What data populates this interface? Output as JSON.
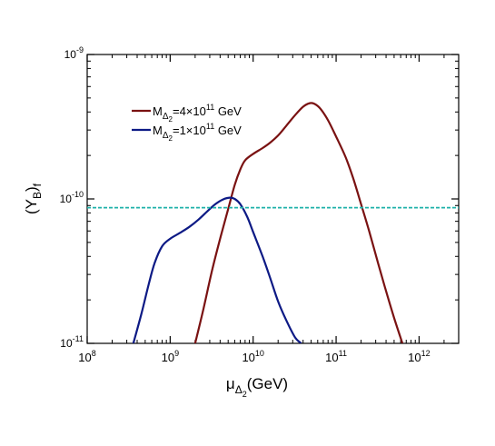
{
  "chart_data": {
    "type": "line",
    "xscale": "log",
    "yscale": "log",
    "xlim": [
      100000000.0,
      3000000000000.0
    ],
    "ylim": [
      1e-11,
      1e-09
    ],
    "x_ticks": [
      {
        "value": 100000000.0,
        "base": "10",
        "exp": "8"
      },
      {
        "value": 1000000000.0,
        "base": "10",
        "exp": "9"
      },
      {
        "value": 10000000000.0,
        "base": "10",
        "exp": "10"
      },
      {
        "value": 100000000000.0,
        "base": "10",
        "exp": "11"
      },
      {
        "value": 1000000000000.0,
        "base": "10",
        "exp": "12"
      }
    ],
    "y_ticks": [
      {
        "value": 1e-11,
        "base": "10",
        "exp": "-11"
      },
      {
        "value": 1e-10,
        "base": "10",
        "exp": "-10"
      },
      {
        "value": 1e-09,
        "base": "10",
        "exp": "-9"
      }
    ],
    "xlabel": {
      "main": "μ",
      "sub": "Δ",
      "subsub": "2",
      "rest": "(GeV)"
    },
    "ylabel": {
      "main": "(Y",
      "sub": "B",
      "close": ")",
      "sub2": "f"
    },
    "legend_placement": "top-left",
    "series": [
      {
        "legend": {
          "pre": "M",
          "sub": "Δ",
          "subsub": "2",
          "mid": "=4×10",
          "exp": "11",
          "post": " GeV"
        },
        "color": "#7a1212",
        "x": [
          2000000000.0,
          2500000000.0,
          3200000000.0,
          4000000000.0,
          5000000000.0,
          6000000000.0,
          7000000000.0,
          8000000000.0,
          10000000000.0,
          13000000000.0,
          16000000000.0,
          20000000000.0,
          25000000000.0,
          32000000000.0,
          40000000000.0,
          48000000000.0,
          55000000000.0,
          65000000000.0,
          80000000000.0,
          100000000000.0,
          130000000000.0,
          160000000000.0,
          200000000000.0,
          250000000000.0,
          320000000000.0,
          400000000000.0,
          500000000000.0,
          630000000000.0
        ],
        "y": [
          1e-11,
          1.7e-11,
          3.2e-11,
          5.3e-11,
          8.5e-11,
          1.25e-10,
          1.6e-10,
          1.85e-10,
          2.05e-10,
          2.25e-10,
          2.45e-10,
          2.75e-10,
          3.2e-10,
          3.8e-10,
          4.35e-10,
          4.6e-10,
          4.55e-10,
          4.2e-10,
          3.5e-10,
          2.7e-10,
          1.95e-10,
          1.4e-10,
          9.2e-11,
          6e-11,
          3.6e-11,
          2.3e-11,
          1.5e-11,
          1e-11
        ]
      },
      {
        "legend": {
          "pre": "M",
          "sub": "Δ",
          "subsub": "2",
          "mid": "=1×10",
          "exp": "11",
          "post": " GeV"
        },
        "color": "#0d1a85",
        "x": [
          360000000.0,
          450000000.0,
          550000000.0,
          650000000.0,
          800000000.0,
          1000000000.0,
          1300000000.0,
          1700000000.0,
          2200000000.0,
          2800000000.0,
          3500000000.0,
          4300000000.0,
          5200000000.0,
          6000000000.0,
          7000000000.0,
          8500000000.0,
          10000000000.0,
          13000000000.0,
          16000000000.0,
          20000000000.0,
          25000000000.0,
          32000000000.0,
          38000000000.0
        ],
        "y": [
          1e-11,
          1.6e-11,
          2.55e-11,
          3.6e-11,
          4.7e-11,
          5.3e-11,
          5.8e-11,
          6.4e-11,
          7.2e-11,
          8.2e-11,
          9.2e-11,
          9.9e-11,
          1.02e-10,
          1e-10,
          9.2e-11,
          7.5e-11,
          5.9e-11,
          4e-11,
          2.85e-11,
          1.95e-11,
          1.45e-11,
          1.1e-11,
          1e-11
        ]
      },
      {
        "color": "#20b2aa",
        "style": "dashed",
        "x": [
          100000000.0,
          3000000000000.0
        ],
        "y": [
          8.7e-11,
          8.7e-11
        ]
      }
    ]
  }
}
